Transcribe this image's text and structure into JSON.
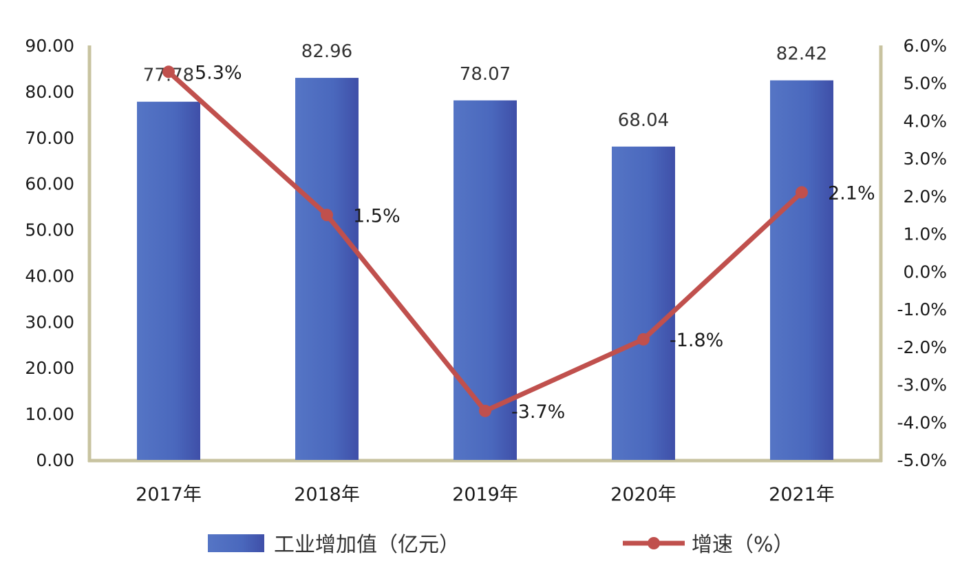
{
  "chart_data": {
    "type": "bar",
    "categories": [
      "2017年",
      "2018年",
      "2019年",
      "2020年",
      "2021年"
    ],
    "series": [
      {
        "name": "工业增加值（亿元）",
        "type": "bar",
        "axis": "left",
        "values": [
          77.78,
          82.96,
          78.07,
          68.04,
          82.42
        ],
        "labels": [
          "77.78",
          "82.96",
          "78.07",
          "68.04",
          "82.42"
        ],
        "color": "#4f6fc0"
      },
      {
        "name": "增速（%）",
        "type": "line",
        "axis": "right",
        "values": [
          5.3,
          1.5,
          -3.7,
          -1.8,
          2.1
        ],
        "labels": [
          "5.3%",
          "1.5%",
          "-3.7%",
          "-1.8%",
          "2.1%"
        ],
        "color": "#c0504d"
      }
    ],
    "y_left": {
      "range": [
        0,
        90
      ],
      "ticks": [
        "0.00",
        "10.00",
        "20.00",
        "30.00",
        "40.00",
        "50.00",
        "60.00",
        "70.00",
        "80.00",
        "90.00"
      ]
    },
    "y_right": {
      "range": [
        -5.0,
        6.0
      ],
      "ticks": [
        "-5.0%",
        "-4.0%",
        "-3.0%",
        "-2.0%",
        "-1.0%",
        "0.0%",
        "1.0%",
        "2.0%",
        "3.0%",
        "4.0%",
        "5.0%",
        "6.0%"
      ]
    },
    "grid": false,
    "legend": "bottom",
    "axis_color": "#c8c3a0"
  }
}
